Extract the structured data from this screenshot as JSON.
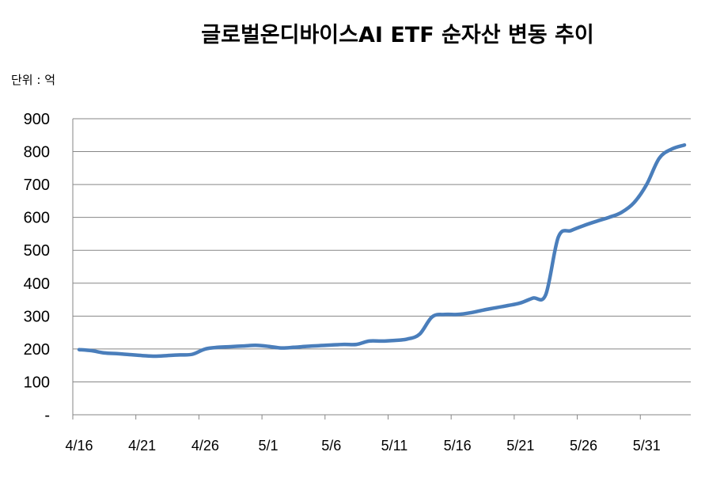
{
  "chart_data": {
    "type": "line",
    "title": "글로벌온디바이스AI ETF 순자산 변동 추이",
    "unit_label": "단위 : 억",
    "xlabel": "",
    "ylabel": "",
    "ylim": [
      0,
      900
    ],
    "y_ticks": [
      {
        "value": 0,
        "label": "-"
      },
      {
        "value": 100,
        "label": "100"
      },
      {
        "value": 200,
        "label": "200"
      },
      {
        "value": 300,
        "label": "300"
      },
      {
        "value": 400,
        "label": "400"
      },
      {
        "value": 500,
        "label": "500"
      },
      {
        "value": 600,
        "label": "600"
      },
      {
        "value": 700,
        "label": "700"
      },
      {
        "value": 800,
        "label": "800"
      },
      {
        "value": 900,
        "label": "900"
      }
    ],
    "x_tick_labels": [
      "4/16",
      "4/21",
      "4/26",
      "5/1",
      "5/6",
      "5/11",
      "5/16",
      "5/21",
      "5/26",
      "5/31"
    ],
    "grid": true,
    "line_color": "#4a7ebb",
    "series": [
      {
        "x": [
          "4/16",
          "4/17",
          "4/18",
          "4/19",
          "4/20",
          "4/21",
          "4/22",
          "4/23",
          "4/24",
          "4/25",
          "4/26",
          "4/27",
          "4/28",
          "4/29",
          "4/30",
          "5/1",
          "5/2",
          "5/3",
          "5/4",
          "5/5",
          "5/6",
          "5/7",
          "5/8",
          "5/9",
          "5/10",
          "5/11",
          "5/12",
          "5/13",
          "5/14",
          "5/15",
          "5/16",
          "5/17",
          "5/18",
          "5/19",
          "5/20",
          "5/21",
          "5/22",
          "5/23",
          "5/24",
          "5/25",
          "5/26",
          "5/27",
          "5/28",
          "5/29",
          "5/30",
          "5/31",
          "6/1",
          "6/2",
          "6/3"
        ],
        "values": [
          198,
          195,
          188,
          186,
          183,
          180,
          178,
          180,
          182,
          184,
          200,
          205,
          207,
          209,
          211,
          208,
          203,
          205,
          208,
          210,
          212,
          214,
          214,
          224,
          224,
          226,
          230,
          245,
          298,
          305,
          305,
          310,
          318,
          325,
          332,
          340,
          355,
          365,
          540,
          560,
          575,
          588,
          600,
          615,
          645,
          700,
          780,
          808,
          820
        ]
      }
    ]
  }
}
